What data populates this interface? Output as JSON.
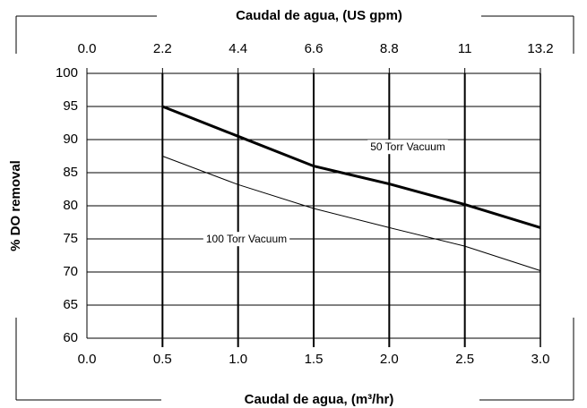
{
  "chart_data": {
    "type": "line",
    "title": "Caudal de agua, (US gpm)",
    "xlabel": "Caudal de agua, (m³/hr)",
    "ylabel": "% DO removal",
    "x": [
      0.5,
      1.0,
      1.5,
      2.0,
      2.5,
      3.0
    ],
    "series": [
      {
        "name": "50 Torr Vacuum",
        "color": "#000000",
        "width": 3,
        "values": [
          95,
          90.5,
          86.0,
          83.3,
          80.2,
          76.7
        ]
      },
      {
        "name": "100 Torr Vacuum",
        "color": "#000000",
        "width": 1,
        "values": [
          87.5,
          83.2,
          79.6,
          76.7,
          73.9,
          70.2
        ]
      }
    ],
    "xlim": [
      0,
      3.0
    ],
    "xticks": [
      {
        "value": 0,
        "label": "0.0"
      },
      0.5,
      {
        "value": 1,
        "label": "1.0"
      },
      1.5,
      {
        "value": 2,
        "label": "2.0"
      },
      2.5,
      {
        "value": 3,
        "label": "3.0"
      }
    ],
    "x2lim": [
      0,
      13.2
    ],
    "x2ticks": [
      {
        "value": 0,
        "label": "0.0"
      },
      2.2,
      4.4,
      6.6,
      8.8,
      11,
      13.2
    ],
    "ylim": [
      60,
      100
    ],
    "yticks": [
      60,
      65,
      70,
      75,
      80,
      85,
      90,
      95,
      100
    ],
    "grid": true
  }
}
